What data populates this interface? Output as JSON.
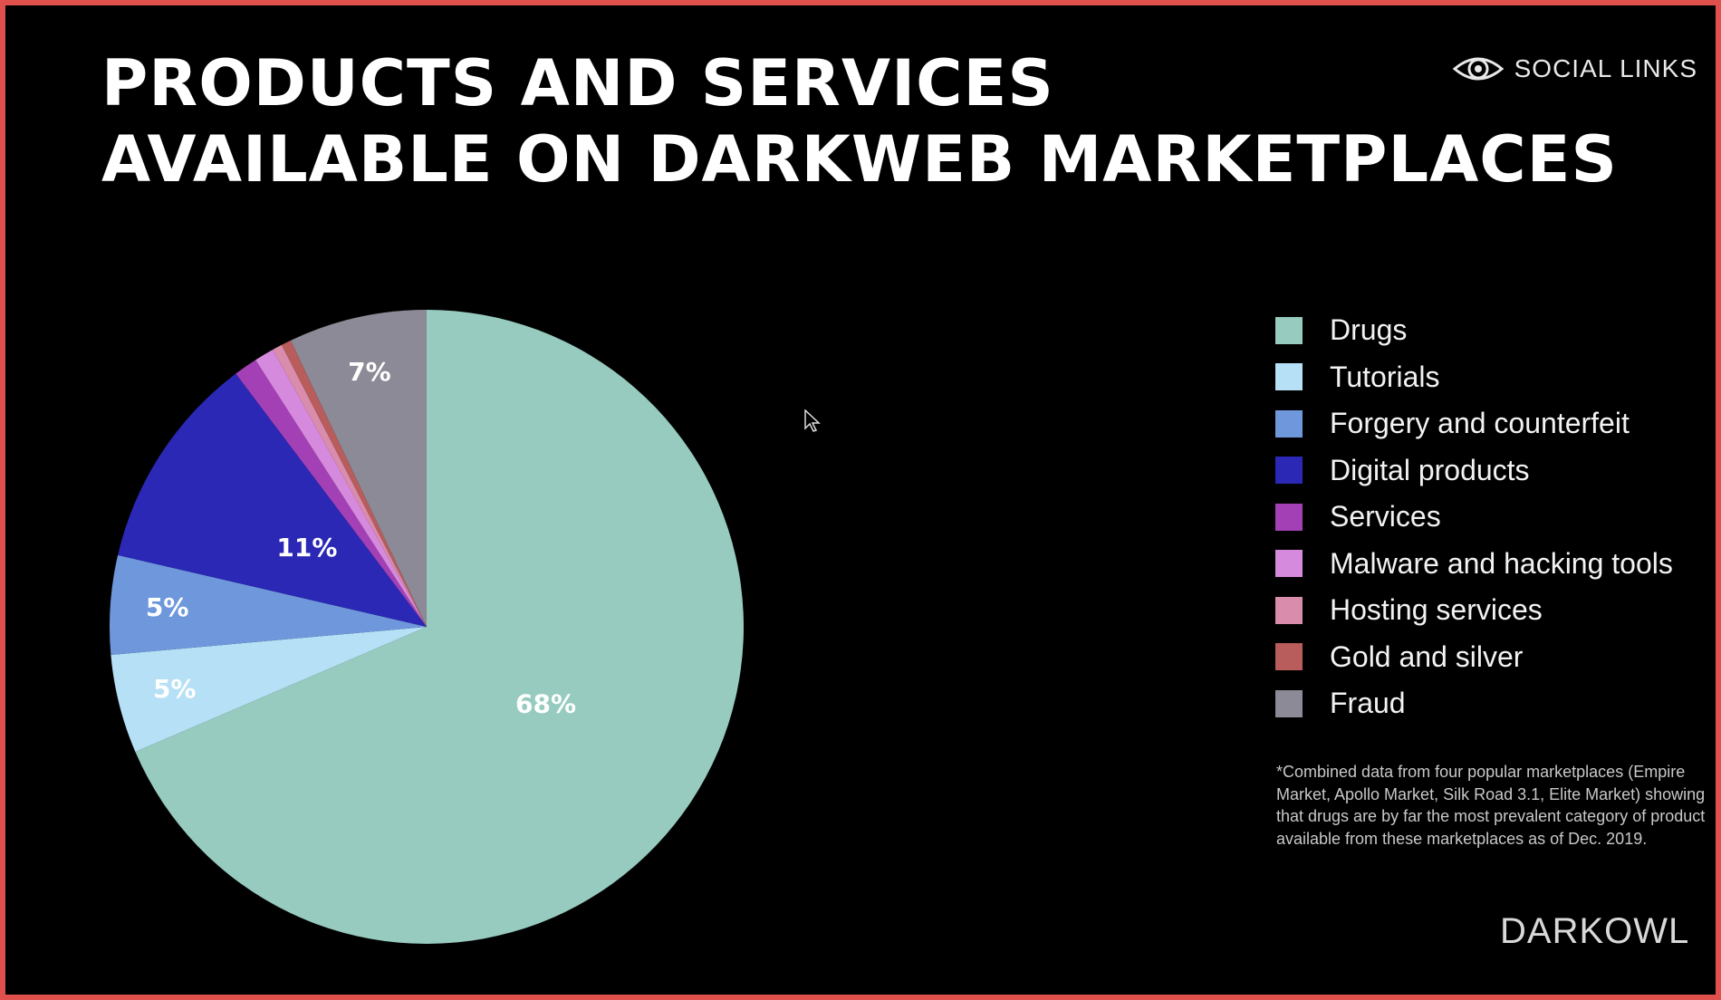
{
  "title": {
    "line1": "PRODUCTS AND SERVICES",
    "line2": "AVAILABLE ON DARKWEB MARKETPLACES"
  },
  "brand": {
    "icon": "eye-icon",
    "text": "SOCIAL LINKS"
  },
  "footnote": "*Combined data from four popular marketplaces (Empire Market, Apollo Market, Silk Road 3.1, Elite Market) showing that drugs are by far the most prevalent category of product available from these marketplaces as of Dec. 2019.",
  "logo": {
    "text": "DARKOWL"
  },
  "chart_data": {
    "type": "pie",
    "title": "PRODUCTS AND SERVICES AVAILABLE ON DARKWEB MARKETPLACES",
    "legend_position": "right",
    "slices": [
      {
        "name": "Drugs",
        "value": 68,
        "label": "68%",
        "color": "#97cbbf"
      },
      {
        "name": "Tutorials",
        "value": 5,
        "label": "5%",
        "color": "#b6e0f5"
      },
      {
        "name": "Forgery and counterfeit",
        "value": 5,
        "label": "5%",
        "color": "#6f98dc"
      },
      {
        "name": "Digital products",
        "value": 11,
        "label": "11%",
        "color": "#2a28b5"
      },
      {
        "name": "Services",
        "value": 1.2,
        "label": "",
        "color": "#a340b5"
      },
      {
        "name": "Malware and hacking tools",
        "value": 1,
        "label": "",
        "color": "#d68ade"
      },
      {
        "name": "Hosting services",
        "value": 0.5,
        "label": "",
        "color": "#d98cab"
      },
      {
        "name": "Gold and silver",
        "value": 0.5,
        "label": "",
        "color": "#b85c5c"
      },
      {
        "name": "Fraud",
        "value": 7,
        "label": "7%",
        "color": "#8b8a96"
      }
    ]
  }
}
